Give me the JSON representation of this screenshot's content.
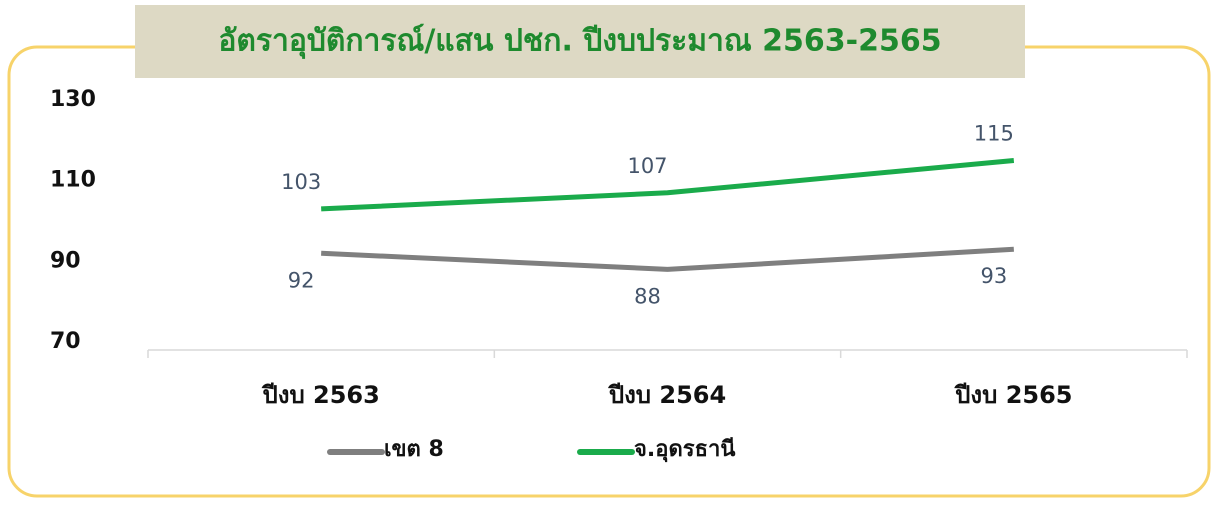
{
  "chart_data": {
    "type": "line",
    "title": "อัตราอุบัติการณ์/แสน ปชก. ปีงบประมาณ 2563-2565",
    "categories": [
      "ปีงบ 2563",
      "ปีงบ 2564",
      "ปีงบ 2565"
    ],
    "series": [
      {
        "name": "เขต 8",
        "color": "#7f7f7f",
        "values": [
          92,
          88,
          93
        ]
      },
      {
        "name": "จ.อุดรธานี",
        "color": "#1aab4b",
        "values": [
          103,
          107,
          115
        ]
      }
    ],
    "ylim": [
      70,
      130
    ],
    "yticks": [
      70,
      90,
      110,
      130
    ],
    "grid": false
  }
}
